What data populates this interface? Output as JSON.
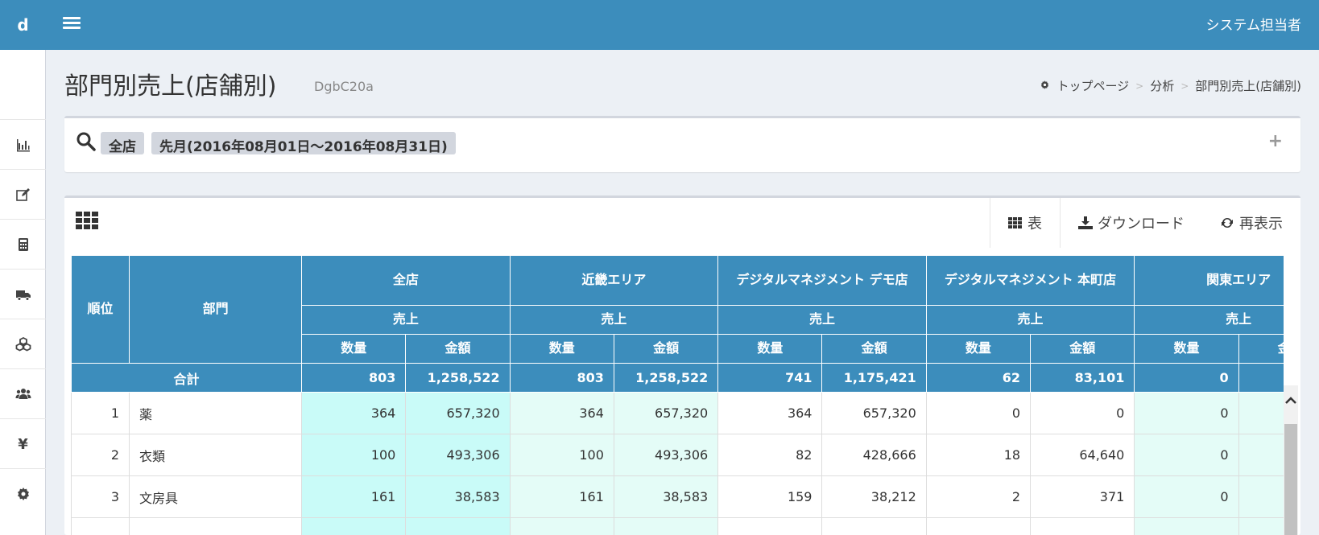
{
  "app": {
    "logo": "d",
    "user_name": "システム担当者"
  },
  "sidebar": {
    "items": [
      {
        "icon": "bar-chart-icon"
      },
      {
        "icon": "edit-icon"
      },
      {
        "icon": "calculator-icon"
      },
      {
        "icon": "truck-icon"
      },
      {
        "icon": "cubes-icon"
      },
      {
        "icon": "users-icon"
      },
      {
        "icon": "yen-icon",
        "glyph": "¥"
      },
      {
        "icon": "gear-icon"
      }
    ]
  },
  "page": {
    "title": "部門別売上(店舗別)",
    "subtitle": "DgbC20a"
  },
  "breadcrumb": {
    "home": "トップページ",
    "items": [
      "分析",
      "部門別売上(店舗別)"
    ],
    "separator": ">"
  },
  "filter": {
    "tags": [
      "全店",
      "先月(2016年08月01日～2016年08月31日)"
    ],
    "expand_symbol": "+"
  },
  "tabs": {
    "table": "表",
    "download": "ダウンロード",
    "refresh": "再表示"
  },
  "table": {
    "headers": {
      "rank": "順位",
      "dept": "部門",
      "groups": [
        "全店",
        "近畿エリア",
        "デジタルマネジメント デモ店",
        "デジタルマネジメント 本町店",
        "関東エリア"
      ],
      "sales": "売上",
      "qty": "数量",
      "amount": "金額"
    },
    "total": {
      "label": "合計",
      "values": [
        "803",
        "1,258,522",
        "803",
        "1,258,522",
        "741",
        "1,175,421",
        "62",
        "83,101",
        "0",
        ""
      ]
    },
    "rows": [
      {
        "rank": "1",
        "name": "薬",
        "values": [
          "364",
          "657,320",
          "364",
          "657,320",
          "364",
          "657,320",
          "0",
          "0",
          "0",
          ""
        ]
      },
      {
        "rank": "2",
        "name": "衣類",
        "values": [
          "100",
          "493,306",
          "100",
          "493,306",
          "82",
          "428,666",
          "18",
          "64,640",
          "0",
          ""
        ]
      },
      {
        "rank": "3",
        "name": "文房具",
        "values": [
          "161",
          "38,583",
          "161",
          "38,583",
          "159",
          "38,212",
          "2",
          "371",
          "0",
          ""
        ]
      },
      {
        "rank": "",
        "name": "",
        "values": [
          "",
          "",
          "",
          "",
          "",
          "",
          "",
          "",
          "",
          ""
        ]
      }
    ]
  }
}
